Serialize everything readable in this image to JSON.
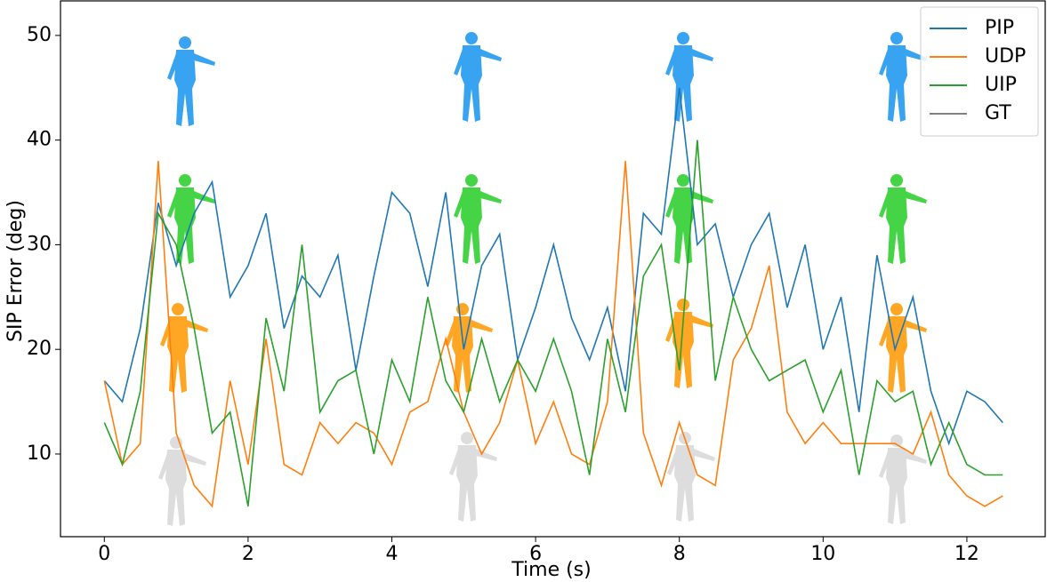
{
  "chart_data": {
    "type": "line",
    "x_label": "Time (s)",
    "y_label": "SIP Error (deg)",
    "x": [
      0,
      0.25,
      0.5,
      0.75,
      1,
      1.25,
      1.5,
      1.75,
      2,
      2.25,
      2.5,
      2.75,
      3,
      3.25,
      3.5,
      3.75,
      4,
      4.25,
      4.5,
      4.75,
      5,
      5.25,
      5.5,
      5.75,
      6,
      6.25,
      6.5,
      6.75,
      7,
      7.25,
      7.5,
      7.75,
      8,
      8.25,
      8.5,
      8.75,
      9,
      9.25,
      9.5,
      9.75,
      10,
      10.25,
      10.5,
      10.75,
      11,
      11.25,
      11.5,
      11.75,
      12,
      12.25,
      12.5
    ],
    "series": [
      {
        "name": "PIP",
        "color": "#1f77b4",
        "values": [
          17,
          15,
          22,
          34,
          28,
          33,
          36,
          25,
          28,
          33,
          22,
          27,
          25,
          29,
          18,
          27,
          35,
          33,
          26,
          35,
          20,
          28,
          31,
          19,
          24,
          30,
          23,
          19,
          24,
          16,
          33,
          31,
          45,
          30,
          32,
          25,
          30,
          33,
          24,
          30,
          20,
          25,
          14,
          29,
          20,
          25,
          16,
          11,
          16,
          15,
          13
        ]
      },
      {
        "name": "UDP",
        "color": "#ff7f0e",
        "values": [
          17,
          9,
          11,
          38,
          12,
          7,
          5,
          17,
          9,
          21,
          9,
          8,
          13,
          11,
          13,
          12,
          9,
          14,
          15,
          21,
          14,
          10,
          13,
          19,
          11,
          15,
          10,
          9,
          15,
          38,
          12,
          7,
          13,
          8,
          7,
          19,
          22,
          28,
          14,
          11,
          13,
          11,
          11,
          11,
          11,
          10,
          14,
          8,
          6,
          5,
          6
        ]
      },
      {
        "name": "UIP",
        "color": "#2ca02c",
        "values": [
          13,
          9,
          16,
          33,
          30,
          22,
          12,
          14,
          5,
          23,
          16,
          30,
          14,
          17,
          18,
          10,
          19,
          15,
          25,
          17,
          14,
          21,
          15,
          19,
          16,
          21,
          16,
          8,
          21,
          14,
          27,
          30,
          18,
          40,
          17,
          25,
          20,
          17,
          18,
          19,
          14,
          18,
          8,
          17,
          15,
          16,
          9,
          13,
          9,
          8,
          8
        ]
      },
      {
        "name": "GT",
        "color": "#7f7f7f",
        "values": [
          null,
          null,
          null,
          null,
          null,
          null,
          null,
          null,
          null,
          null,
          null,
          null,
          null,
          null,
          null,
          null,
          null,
          null,
          null,
          null,
          null,
          null,
          null,
          null,
          null,
          null,
          null,
          null,
          null,
          null,
          null,
          null,
          null,
          null,
          null,
          null,
          null,
          null,
          null,
          null,
          null,
          null,
          null,
          null,
          null,
          null,
          null,
          null,
          null,
          null,
          null
        ]
      }
    ],
    "xlim": [
      -0.61,
      13.09
    ],
    "ylim": [
      2.1,
      53.3
    ],
    "xticks": [
      0,
      2,
      4,
      6,
      8,
      10,
      12
    ],
    "yticks": [
      10,
      20,
      30,
      40,
      50
    ],
    "grid": false,
    "legend": "upper right"
  }
}
